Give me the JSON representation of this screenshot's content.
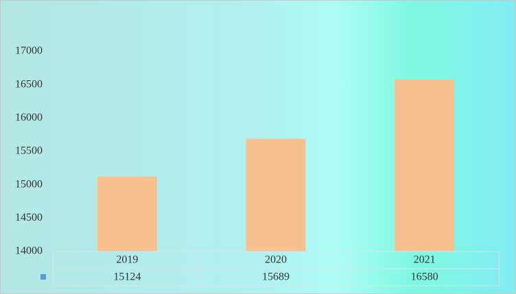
{
  "chart_data": {
    "type": "bar",
    "categories": [
      "2019",
      "2020",
      "2021"
    ],
    "values": [
      15124,
      15689,
      16580
    ],
    "color": "#f9c08f",
    "legend_key_color": "#5b9bd5",
    "ylim": [
      14000,
      17000
    ],
    "yticks": [
      14000,
      14500,
      15000,
      15500,
      16000,
      16500,
      17000
    ],
    "data_table": true
  }
}
